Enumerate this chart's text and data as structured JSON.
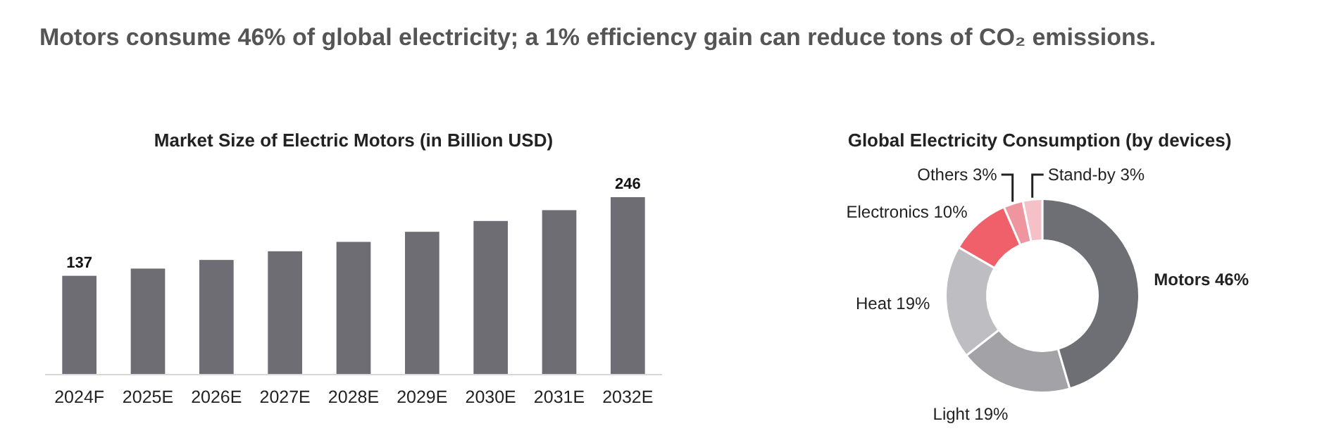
{
  "chart_data": [
    {
      "type": "other",
      "title": "Motors consume 46% of global electricity; a 1% efficiency gain can reduce tons of CO₂ emissions."
    },
    {
      "type": "bar",
      "title": "Market Size of Electric Motors (in Billion USD)",
      "categories": [
        "2024F",
        "2025E",
        "2026E",
        "2027E",
        "2028E",
        "2029E",
        "2030E",
        "2031E",
        "2032E"
      ],
      "values": [
        137,
        147,
        159,
        171,
        184,
        198,
        213,
        228,
        246
      ],
      "value_labels": [
        "137",
        null,
        null,
        null,
        null,
        null,
        null,
        null,
        "246"
      ],
      "color": "#6d6d73"
    },
    {
      "type": "donut",
      "title": "Global Electricity Consumption (by devices)",
      "categories": [
        "Motors",
        "Light",
        "Heat",
        "Electronics",
        "Others",
        "Stand-by"
      ],
      "values": [
        46,
        19,
        19,
        10,
        3,
        3
      ],
      "value_labels": [
        "46%",
        "19%",
        "19%",
        "10%",
        "3%",
        "3%"
      ],
      "colors": [
        "#6e6e75",
        "#a2a2a7",
        "#bebec2",
        "#f0606a",
        "#ee95a0",
        "#f5c0c8"
      ]
    }
  ]
}
